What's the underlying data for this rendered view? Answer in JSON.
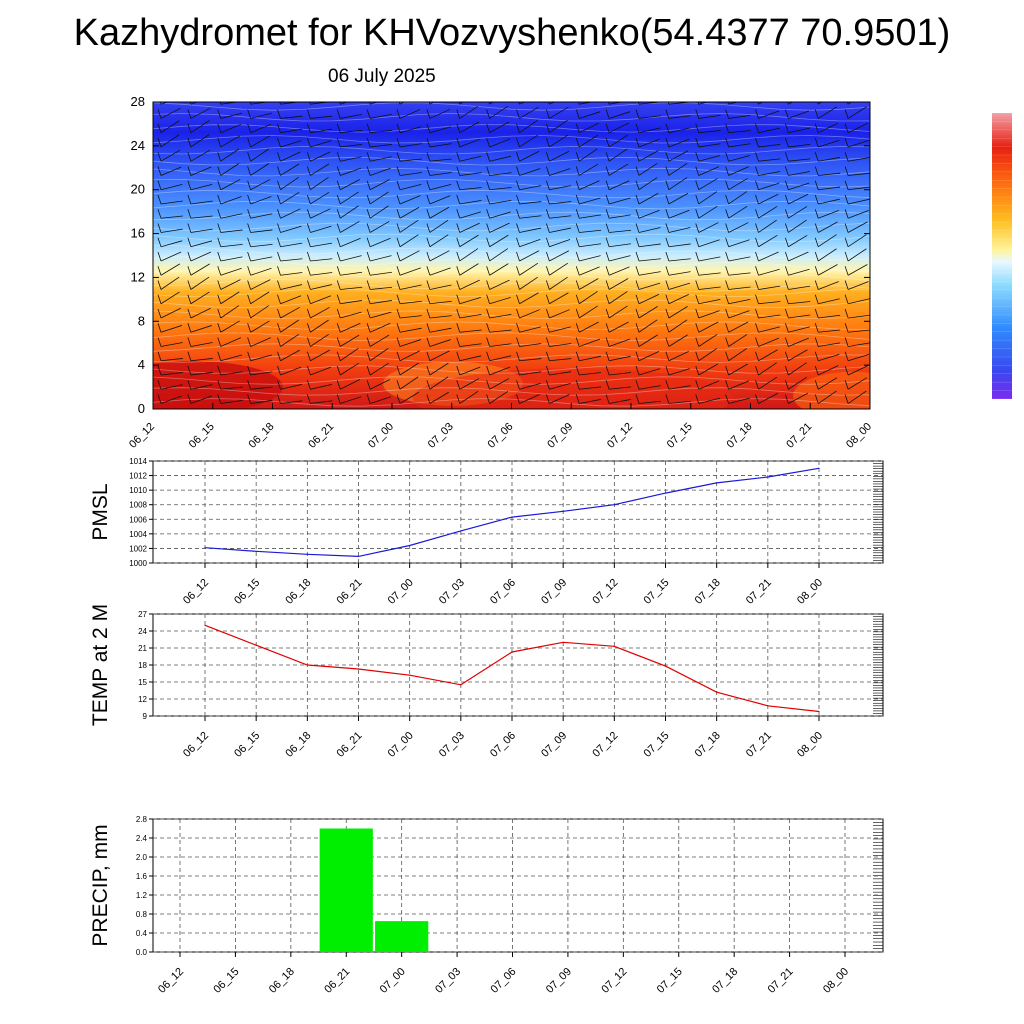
{
  "title": "Kazhydromet for KHVozvyshenko(54.4377 70.9501)",
  "subtitle": "06 July 2025",
  "colors": {
    "pmsl_line": "#1a1ad8",
    "temp_line": "#e00000",
    "precip_bar": "#00ee00",
    "grid": "#555555"
  },
  "chart_data": [
    {
      "type": "heatmap",
      "title": "",
      "xlabel": "",
      "ylabel": "",
      "x_ticks": [
        "06_12",
        "06_15",
        "06_18",
        "06_21",
        "07_00",
        "07_03",
        "07_06",
        "07_09",
        "07_12",
        "07_15",
        "07_18",
        "07_21",
        "08_00"
      ],
      "y_ticks": [
        0,
        4,
        8,
        12,
        16,
        20,
        24,
        28
      ],
      "ylim": [
        0,
        28
      ],
      "colorbar": "blue-white-yellow-red",
      "contour_shape": "freezing transition near 13 at 06_12 sloping to about 12 at 08_00; warmest values near 0-4 at 06_12 and 07_03; overlaid wind barbs"
    },
    {
      "type": "line",
      "ylabel": "PMSL",
      "x": [
        "06_12",
        "06_15",
        "06_18",
        "06_21",
        "07_00",
        "07_03",
        "07_06",
        "07_09",
        "07_12",
        "07_15",
        "07_18",
        "07_21",
        "08_00"
      ],
      "values": [
        1002.1,
        1001.6,
        1001.2,
        1000.9,
        1002.4,
        1004.4,
        1006.3,
        1007.1,
        1008.0,
        1009.6,
        1011.0,
        1011.8,
        1013.0
      ],
      "ylim": [
        1000,
        1014
      ],
      "y_ticks": [
        1000,
        1002,
        1004,
        1006,
        1008,
        1010,
        1012,
        1014
      ],
      "grid": true
    },
    {
      "type": "line",
      "ylabel": "TEMP at 2 M",
      "x": [
        "06_12",
        "06_15",
        "06_18",
        "06_21",
        "07_00",
        "07_03",
        "07_06",
        "07_09",
        "07_12",
        "07_15",
        "07_18",
        "07_21",
        "08_00"
      ],
      "values": [
        25.0,
        21.5,
        18.0,
        17.3,
        16.2,
        14.5,
        20.3,
        22.0,
        21.3,
        17.8,
        13.2,
        10.8,
        9.8
      ],
      "ylim": [
        9,
        27
      ],
      "y_ticks": [
        9,
        12,
        15,
        18,
        21,
        24,
        27
      ],
      "grid": true
    },
    {
      "type": "bar",
      "ylabel": "PRECIP, mm",
      "categories": [
        "06_12",
        "06_15",
        "06_18",
        "06_21",
        "07_00",
        "07_03",
        "07_06",
        "07_09",
        "07_12",
        "07_15",
        "07_18",
        "07_21",
        "08_00"
      ],
      "values": [
        0,
        0,
        0,
        2.6,
        0.65,
        0,
        0,
        0,
        0,
        0,
        0,
        0,
        0
      ],
      "ylim": [
        0,
        2.8
      ],
      "y_ticks": [
        "0.0",
        "0.4",
        "0.8",
        "1.2",
        "1.6",
        "2.0",
        "2.4",
        "2.8"
      ],
      "grid": true
    }
  ]
}
